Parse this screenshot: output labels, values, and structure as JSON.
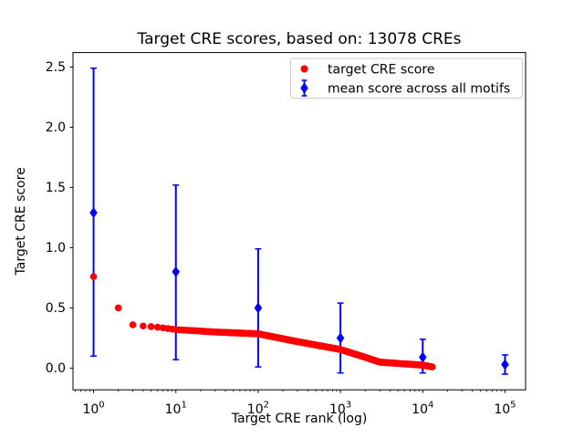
{
  "window": {
    "background": "#ffffff"
  },
  "colors": {
    "red": "#ff0000",
    "blue": "#0000ff",
    "axis": "#000000",
    "legend_border": "#cccccc",
    "legend_fill": "#ffffff"
  },
  "legend": {
    "position": "upper right",
    "items": [
      {
        "label": "target CRE score",
        "marker": "red-circle"
      },
      {
        "label": "mean score across all motifs",
        "marker": "blue-diamond-errorbar"
      }
    ]
  },
  "chart_data": {
    "type": "scatter",
    "title": "Target CRE scores, based on: 13078 CREs",
    "xlabel": "Target CRE rank (log)",
    "ylabel": "Target CRE score",
    "x_scale": "log",
    "y_scale": "linear",
    "grid": false,
    "legend_position": "upper right",
    "xlim_log10": [
      -0.25,
      5.25
    ],
    "ylim": [
      -0.18,
      2.62
    ],
    "x_ticks": [
      {
        "value": 1,
        "base": "10",
        "exp": "0"
      },
      {
        "value": 10,
        "base": "10",
        "exp": "1"
      },
      {
        "value": 100,
        "base": "10",
        "exp": "2"
      },
      {
        "value": 1000,
        "base": "10",
        "exp": "3"
      },
      {
        "value": 10000,
        "base": "10",
        "exp": "4"
      },
      {
        "value": 100000,
        "base": "10",
        "exp": "5"
      }
    ],
    "y_ticks": [
      "0.0",
      "0.5",
      "1.0",
      "1.5",
      "2.0",
      "2.5"
    ],
    "series": [
      {
        "name": "target CRE score",
        "type": "scatter",
        "marker": "circle",
        "color": "#ff0000",
        "n_points": 13078,
        "curve_anchors": [
          [
            1,
            0.76
          ],
          [
            2,
            0.5
          ],
          [
            3,
            0.36
          ],
          [
            4,
            0.35
          ],
          [
            6,
            0.34
          ],
          [
            10,
            0.32
          ],
          [
            30,
            0.3
          ],
          [
            100,
            0.285
          ],
          [
            300,
            0.22
          ],
          [
            1000,
            0.155
          ],
          [
            2000,
            0.09
          ],
          [
            3000,
            0.05
          ],
          [
            10000,
            0.025
          ],
          [
            13078,
            0.01
          ]
        ]
      },
      {
        "name": "mean score across all motifs",
        "type": "errorbar",
        "marker": "diamond",
        "color": "#0000ff",
        "points": [
          {
            "rank": 1,
            "mean": 1.29,
            "lo": 0.1,
            "hi": 2.49
          },
          {
            "rank": 10,
            "mean": 0.8,
            "lo": 0.07,
            "hi": 1.52
          },
          {
            "rank": 100,
            "mean": 0.5,
            "lo": 0.01,
            "hi": 0.99
          },
          {
            "rank": 1000,
            "mean": 0.25,
            "lo": -0.04,
            "hi": 0.54
          },
          {
            "rank": 10000,
            "mean": 0.09,
            "lo": -0.04,
            "hi": 0.24
          },
          {
            "rank": 100000,
            "mean": 0.03,
            "lo": -0.05,
            "hi": 0.11
          }
        ]
      }
    ]
  }
}
